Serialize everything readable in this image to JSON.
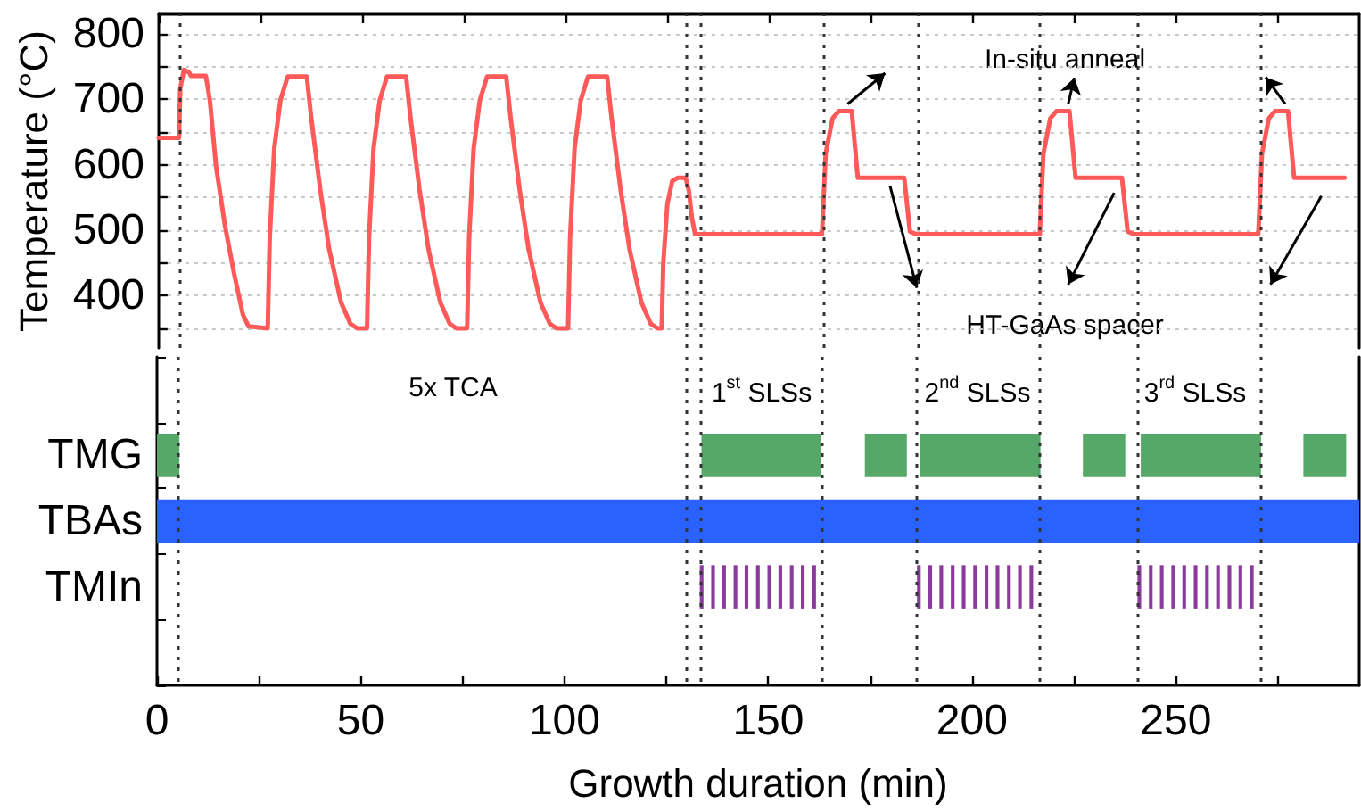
{
  "chart_data": [
    {
      "type": "line",
      "ylabel": "Temperature (°C)",
      "xlim": [
        0,
        295
      ],
      "ylim": [
        320,
        830
      ],
      "xticks": [
        0,
        {
          "value": 25,
          "label": null
        },
        50,
        {
          "value": 75,
          "label": null
        },
        100,
        {
          "value": 125,
          "label": null
        },
        150,
        {
          "value": 175,
          "label": null
        },
        200,
        {
          "value": 225,
          "label": null
        },
        250,
        {
          "value": 275,
          "label": null
        }
      ],
      "yticks": [
        {
          "value": 350,
          "label": null
        },
        400,
        {
          "value": 450,
          "label": null
        },
        500,
        {
          "value": 550,
          "label": null
        },
        600,
        {
          "value": 650,
          "label": null
        },
        700,
        {
          "value": 750,
          "label": null
        },
        800
      ],
      "tick_labels": "y",
      "grid": "y",
      "marker": "none",
      "ref_lines": [
        {
          "axis": "x",
          "value": 5.3,
          "color": "#333333",
          "line_style": "dotted"
        },
        {
          "axis": "x",
          "value": 129.8,
          "color": "#333333",
          "line_style": "dotted"
        },
        {
          "axis": "x",
          "value": 133.3,
          "color": "#333333",
          "line_style": "dotted"
        },
        {
          "axis": "x",
          "value": 163.2,
          "color": "#333333",
          "line_style": "dotted"
        },
        {
          "axis": "x",
          "value": 186.5,
          "color": "#333333",
          "line_style": "dotted"
        },
        {
          "axis": "x",
          "value": 216.5,
          "color": "#333333",
          "line_style": "dotted"
        },
        {
          "axis": "x",
          "value": 240.4,
          "color": "#333333",
          "line_style": "dotted"
        },
        {
          "axis": "x",
          "value": 270.9,
          "color": "#333333",
          "line_style": "dotted"
        }
      ],
      "annotations": [
        "In-situ anneal",
        "HT-GaAs spacer"
      ],
      "series": [
        {
          "color": "#ff5a5a",
          "x": [
            0,
            5.0,
            5.3,
            6.2,
            7.5,
            7.9,
            11.6,
            12.6,
            14.1,
            16.3,
            18.5,
            20.7,
            22.1,
            26.8,
            27.3,
            28.4,
            29.9,
            31.7,
            36.4,
            37.5,
            39.7,
            41.9,
            44.8,
            47.1,
            48.8,
            51.2,
            51.7,
            52.8,
            54.3,
            56.1,
            60.8,
            61.9,
            64.1,
            66.3,
            69.2,
            71.5,
            73.2,
            75.8,
            76.3,
            77.4,
            78.9,
            80.7,
            85.4,
            86.5,
            88.7,
            90.9,
            93.8,
            96.1,
            97.8,
            100.6,
            101.1,
            102.2,
            103.7,
            105.5,
            110.2,
            111.3,
            113.5,
            115.7,
            118.6,
            120.9,
            122.6,
            123.6,
            124.0,
            125.0,
            126.2,
            127.5,
            129.5,
            130.3,
            131.0,
            131.8,
            163,
            163.9,
            165.6,
            167.1,
            170.3,
            171.8,
            173,
            183.2,
            184.6,
            186.1,
            216.5,
            217.4,
            219.1,
            220.6,
            223.8,
            225.3,
            226.5,
            236.7,
            238.1,
            239.6,
            270.2,
            271.1,
            272.8,
            274.3,
            277.5,
            279,
            280.2,
            291.4
          ],
          "values": [
            641,
            641,
            716,
            745,
            741,
            736,
            736,
            698,
            598,
            507,
            435,
            371,
            353,
            350,
            489,
            625,
            698,
            735,
            735,
            671,
            562,
            471,
            390,
            357,
            350,
            350,
            489,
            625,
            698,
            735,
            735,
            671,
            562,
            471,
            390,
            357,
            350,
            350,
            489,
            625,
            698,
            735,
            735,
            671,
            562,
            471,
            390,
            357,
            350,
            350,
            489,
            625,
            698,
            735,
            735,
            671,
            562,
            471,
            390,
            357,
            350,
            350,
            450,
            540,
            575,
            580,
            580,
            560,
            520,
            494,
            494,
            617,
            671,
            682,
            682,
            580,
            580,
            580,
            498,
            494,
            494,
            617,
            671,
            682,
            682,
            580,
            580,
            580,
            498,
            494,
            494,
            617,
            671,
            682,
            682,
            580,
            580,
            580
          ]
        }
      ]
    },
    {
      "type": "bar",
      "orientation": "horizontal",
      "xlabel": "Growth duration (min)",
      "categories": [
        "TMG",
        "TBAs",
        "TMIn"
      ],
      "xlim": [
        0,
        295
      ],
      "xticks": [
        0,
        {
          "value": 25,
          "label": null
        },
        50,
        {
          "value": 75,
          "label": null
        },
        100,
        {
          "value": 125,
          "label": null
        },
        150,
        {
          "value": 175,
          "label": null
        },
        200,
        {
          "value": 225,
          "label": null
        },
        250,
        {
          "value": 275,
          "label": null
        }
      ],
      "ref_lines": [
        {
          "axis": "x",
          "value": 5.3,
          "color": "#333333",
          "line_style": "dotted"
        },
        {
          "axis": "x",
          "value": 129.8,
          "color": "#333333",
          "line_style": "dotted"
        },
        {
          "axis": "x",
          "value": 133.3,
          "color": "#333333",
          "line_style": "dotted"
        },
        {
          "axis": "x",
          "value": 163.2,
          "color": "#333333",
          "line_style": "dotted"
        },
        {
          "axis": "x",
          "value": 186.5,
          "color": "#333333",
          "line_style": "dotted"
        },
        {
          "axis": "x",
          "value": 216.5,
          "color": "#333333",
          "line_style": "dotted"
        },
        {
          "axis": "x",
          "value": 240.4,
          "color": "#333333",
          "line_style": "dotted"
        },
        {
          "axis": "x",
          "value": 270.9,
          "color": "#333333",
          "line_style": "dotted"
        }
      ],
      "annotations": [
        "5x TCA",
        "1$^{st}$ SLSs",
        "2$^{nd}$ SLSs",
        "3$^{rd}$ SLSs"
      ],
      "series": [
        {
          "color": "#55a868",
          "base": [
            0,
            null,
            null
          ],
          "values": [
            5.5,
            null,
            null
          ]
        },
        {
          "color": "#55a868",
          "base": [
            133.6,
            null,
            null
          ],
          "values": [
            29.4,
            null,
            null
          ]
        },
        {
          "color": "#55a868",
          "base": [
            173.7,
            null,
            null
          ],
          "values": [
            10.3,
            null,
            null
          ]
        },
        {
          "color": "#55a868",
          "base": [
            187.3,
            null,
            null
          ],
          "values": [
            29.5,
            null,
            null
          ]
        },
        {
          "color": "#55a868",
          "base": [
            227.2,
            null,
            null
          ],
          "values": [
            10.4,
            null,
            null
          ]
        },
        {
          "color": "#55a868",
          "base": [
            241.4,
            null,
            null
          ],
          "values": [
            29.5,
            null,
            null
          ]
        },
        {
          "color": "#55a868",
          "base": [
            281.3,
            null,
            null
          ],
          "values": [
            10.5,
            null,
            null
          ]
        },
        {
          "color": "#2962ff",
          "base": [
            null,
            0,
            null
          ],
          "values": [
            null,
            295,
            null
          ]
        },
        {
          "color": "#8b3a9e",
          "base": [
            null,
            null,
            133.2
          ],
          "values": [
            null,
            null,
            0.9
          ]
        },
        {
          "color": "#8b3a9e",
          "base": [
            null,
            null,
            136.0
          ],
          "values": [
            null,
            null,
            0.9
          ]
        },
        {
          "color": "#8b3a9e",
          "base": [
            null,
            null,
            138.7
          ],
          "values": [
            null,
            null,
            0.9
          ]
        },
        {
          "color": "#8b3a9e",
          "base": [
            null,
            null,
            141.5
          ],
          "values": [
            null,
            null,
            0.9
          ]
        },
        {
          "color": "#8b3a9e",
          "base": [
            null,
            null,
            144.2
          ],
          "values": [
            null,
            null,
            0.9
          ]
        },
        {
          "color": "#8b3a9e",
          "base": [
            null,
            null,
            147.0
          ],
          "values": [
            null,
            null,
            0.9
          ]
        },
        {
          "color": "#8b3a9e",
          "base": [
            null,
            null,
            149.8
          ],
          "values": [
            null,
            null,
            0.9
          ]
        },
        {
          "color": "#8b3a9e",
          "base": [
            null,
            null,
            152.5
          ],
          "values": [
            null,
            null,
            0.9
          ]
        },
        {
          "color": "#8b3a9e",
          "base": [
            null,
            null,
            155.3
          ],
          "values": [
            null,
            null,
            0.9
          ]
        },
        {
          "color": "#8b3a9e",
          "base": [
            null,
            null,
            158.0
          ],
          "values": [
            null,
            null,
            0.9
          ]
        },
        {
          "color": "#8b3a9e",
          "base": [
            null,
            null,
            160.8
          ],
          "values": [
            null,
            null,
            0.9
          ]
        },
        {
          "color": "#8b3a9e",
          "base": [
            null,
            null,
            186.5
          ],
          "values": [
            null,
            null,
            0.9
          ]
        },
        {
          "color": "#8b3a9e",
          "base": [
            null,
            null,
            189.3
          ],
          "values": [
            null,
            null,
            0.9
          ]
        },
        {
          "color": "#8b3a9e",
          "base": [
            null,
            null,
            192.0
          ],
          "values": [
            null,
            null,
            0.9
          ]
        },
        {
          "color": "#8b3a9e",
          "base": [
            null,
            null,
            194.8
          ],
          "values": [
            null,
            null,
            0.9
          ]
        },
        {
          "color": "#8b3a9e",
          "base": [
            null,
            null,
            197.5
          ],
          "values": [
            null,
            null,
            0.9
          ]
        },
        {
          "color": "#8b3a9e",
          "base": [
            null,
            null,
            200.3
          ],
          "values": [
            null,
            null,
            0.9
          ]
        },
        {
          "color": "#8b3a9e",
          "base": [
            null,
            null,
            203.1
          ],
          "values": [
            null,
            null,
            0.9
          ]
        },
        {
          "color": "#8b3a9e",
          "base": [
            null,
            null,
            205.8
          ],
          "values": [
            null,
            null,
            0.9
          ]
        },
        {
          "color": "#8b3a9e",
          "base": [
            null,
            null,
            208.6
          ],
          "values": [
            null,
            null,
            0.9
          ]
        },
        {
          "color": "#8b3a9e",
          "base": [
            null,
            null,
            211.3
          ],
          "values": [
            null,
            null,
            0.9
          ]
        },
        {
          "color": "#8b3a9e",
          "base": [
            null,
            null,
            214.1
          ],
          "values": [
            null,
            null,
            0.9
          ]
        },
        {
          "color": "#8b3a9e",
          "base": [
            null,
            null,
            240.6
          ],
          "values": [
            null,
            null,
            0.9
          ]
        },
        {
          "color": "#8b3a9e",
          "base": [
            null,
            null,
            243.4
          ],
          "values": [
            null,
            null,
            0.9
          ]
        },
        {
          "color": "#8b3a9e",
          "base": [
            null,
            null,
            246.1
          ],
          "values": [
            null,
            null,
            0.9
          ]
        },
        {
          "color": "#8b3a9e",
          "base": [
            null,
            null,
            248.9
          ],
          "values": [
            null,
            null,
            0.9
          ]
        },
        {
          "color": "#8b3a9e",
          "base": [
            null,
            null,
            251.6
          ],
          "values": [
            null,
            null,
            0.9
          ]
        },
        {
          "color": "#8b3a9e",
          "base": [
            null,
            null,
            254.4
          ],
          "values": [
            null,
            null,
            0.9
          ]
        },
        {
          "color": "#8b3a9e",
          "base": [
            null,
            null,
            257.2
          ],
          "values": [
            null,
            null,
            0.9
          ]
        },
        {
          "color": "#8b3a9e",
          "base": [
            null,
            null,
            259.9
          ],
          "values": [
            null,
            null,
            0.9
          ]
        },
        {
          "color": "#8b3a9e",
          "base": [
            null,
            null,
            262.7
          ],
          "values": [
            null,
            null,
            0.9
          ]
        },
        {
          "color": "#8b3a9e",
          "base": [
            null,
            null,
            265.4
          ],
          "values": [
            null,
            null,
            0.9
          ]
        },
        {
          "color": "#8b3a9e",
          "base": [
            null,
            null,
            268.2
          ],
          "values": [
            null,
            null,
            0.9
          ]
        }
      ]
    }
  ]
}
